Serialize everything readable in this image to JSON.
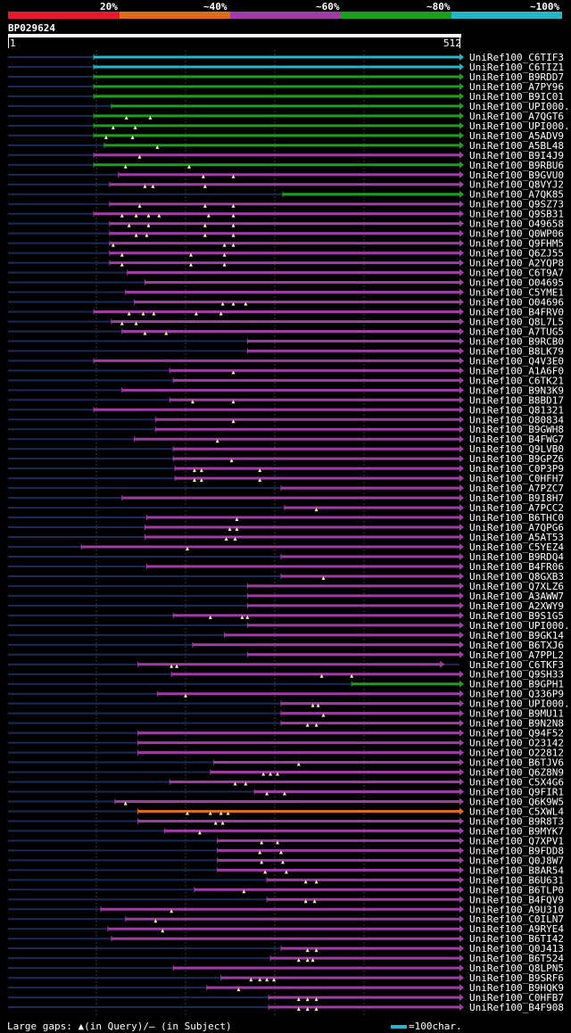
{
  "legend": {
    "labels": [
      "20%",
      "~40%",
      "~60%",
      "~80%",
      "~100%"
    ],
    "colors": [
      "#e8192c",
      "#e06b1a",
      "#a03ca6",
      "#1aa01a",
      "#22b8c8"
    ]
  },
  "query": {
    "id": "BP029624",
    "start": "1",
    "end": "512",
    "length": 512
  },
  "footer": {
    "gaps": "Large gaps: ▲(in Query)/– (in Subject)",
    "scale": "=100char."
  },
  "hits": [
    {
      "name": "UniRef100_C6TIF3",
      "s": 98,
      "e": 512,
      "c": "#22b8c8",
      "g": []
    },
    {
      "name": "UniRef100_C6TIZ1",
      "s": 98,
      "e": 512,
      "c": "#22b8c8",
      "g": []
    },
    {
      "name": "UniRef100_B9RDD7",
      "s": 98,
      "e": 512,
      "c": "#1aa01a",
      "g": []
    },
    {
      "name": "UniRef100_A7PY96",
      "s": 98,
      "e": 512,
      "c": "#1aa01a",
      "g": []
    },
    {
      "name": "UniRef100_B9IC01",
      "s": 98,
      "e": 512,
      "c": "#1aa01a",
      "g": []
    },
    {
      "name": "UniRef100_UPI000..",
      "s": 118,
      "e": 512,
      "c": "#1aa01a",
      "g": []
    },
    {
      "name": "UniRef100_A7QGT6",
      "s": 98,
      "e": 512,
      "c": "#1aa01a",
      "g": [
        135,
        162
      ]
    },
    {
      "name": "UniRef100_UPI000..",
      "s": 98,
      "e": 512,
      "c": "#1aa01a",
      "g": [
        120,
        145
      ]
    },
    {
      "name": "UniRef100_A5ADV9",
      "s": 98,
      "e": 512,
      "c": "#1aa01a",
      "g": [
        112,
        142
      ]
    },
    {
      "name": "UniRef100_A5BL48",
      "s": 110,
      "e": 512,
      "c": "#1aa01a",
      "g": [
        170
      ]
    },
    {
      "name": "UniRef100_B9I4J9",
      "s": 98,
      "e": 512,
      "c": "#a03ca6",
      "g": [
        150
      ]
    },
    {
      "name": "UniRef100_B9RBU6",
      "s": 98,
      "e": 512,
      "c": "#1aa01a",
      "g": [
        134,
        206
      ]
    },
    {
      "name": "UniRef100_B9GVU0",
      "s": 126,
      "e": 512,
      "c": "#a03ca6",
      "g": [
        222,
        256
      ]
    },
    {
      "name": "UniRef100_Q8VYJ2",
      "s": 116,
      "e": 512,
      "c": "#a03ca6",
      "g": [
        156,
        165,
        224
      ]
    },
    {
      "name": "UniRef100_A7QK85",
      "s": 312,
      "e": 512,
      "c": "#1aa01a",
      "g": []
    },
    {
      "name": "UniRef100_Q9SZ73",
      "s": 116,
      "e": 512,
      "c": "#a03ca6",
      "g": [
        150,
        224,
        256
      ]
    },
    {
      "name": "UniRef100_Q9SB31",
      "s": 98,
      "e": 512,
      "c": "#a03ca6",
      "g": [
        130,
        146,
        160,
        172,
        228,
        256
      ]
    },
    {
      "name": "UniRef100_O49658",
      "s": 116,
      "e": 512,
      "c": "#a03ca6",
      "g": [
        138,
        160,
        224,
        256
      ]
    },
    {
      "name": "UniRef100_Q0WP06",
      "s": 116,
      "e": 512,
      "c": "#a03ca6",
      "g": [
        146,
        158,
        224,
        256
      ]
    },
    {
      "name": "UniRef100_Q9FHM5",
      "s": 116,
      "e": 512,
      "c": "#a03ca6",
      "g": [
        120,
        246,
        256
      ]
    },
    {
      "name": "UniRef100_Q6ZJ55",
      "s": 116,
      "e": 512,
      "c": "#a03ca6",
      "g": [
        130,
        208,
        246
      ]
    },
    {
      "name": "UniRef100_A2YQP8",
      "s": 116,
      "e": 512,
      "c": "#a03ca6",
      "g": [
        130,
        208,
        246
      ]
    },
    {
      "name": "UniRef100_C6T9A7",
      "s": 136,
      "e": 512,
      "c": "#a03ca6",
      "g": []
    },
    {
      "name": "UniRef100_O04695",
      "s": 156,
      "e": 512,
      "c": "#a03ca6",
      "g": []
    },
    {
      "name": "UniRef100_C5YME1",
      "s": 134,
      "e": 512,
      "c": "#a03ca6",
      "g": []
    },
    {
      "name": "UniRef100_O04696",
      "s": 144,
      "e": 512,
      "c": "#a03ca6",
      "g": [
        244,
        256,
        270
      ]
    },
    {
      "name": "UniRef100_B4FRV0",
      "s": 98,
      "e": 512,
      "c": "#a03ca6",
      "g": [
        138,
        154,
        166,
        214,
        242
      ]
    },
    {
      "name": "UniRef100_Q8L7L5",
      "s": 118,
      "e": 512,
      "c": "#a03ca6",
      "g": [
        130,
        146
      ]
    },
    {
      "name": "UniRef100_A7TUG5",
      "s": 130,
      "e": 512,
      "c": "#a03ca6",
      "g": [
        156,
        180
      ]
    },
    {
      "name": "UniRef100_B9RCB0",
      "s": 272,
      "e": 512,
      "c": "#a03ca6",
      "g": []
    },
    {
      "name": "UniRef100_B8LK79",
      "s": 272,
      "e": 512,
      "c": "#a03ca6",
      "g": []
    },
    {
      "name": "UniRef100_Q4V3E0",
      "s": 98,
      "e": 512,
      "c": "#a03ca6",
      "g": []
    },
    {
      "name": "UniRef100_A1A6F0",
      "s": 184,
      "e": 512,
      "c": "#a03ca6",
      "g": [
        256
      ]
    },
    {
      "name": "UniRef100_C6TK21",
      "s": 188,
      "e": 512,
      "c": "#a03ca6",
      "g": []
    },
    {
      "name": "UniRef100_B9N3K9",
      "s": 130,
      "e": 512,
      "c": "#a03ca6",
      "g": []
    },
    {
      "name": "UniRef100_B8BD17",
      "s": 184,
      "e": 512,
      "c": "#a03ca6",
      "g": [
        210,
        256
      ]
    },
    {
      "name": "UniRef100_Q81321",
      "s": 98,
      "e": 512,
      "c": "#a03ca6",
      "g": []
    },
    {
      "name": "UniRef100_O80834",
      "s": 168,
      "e": 512,
      "c": "#a03ca6",
      "g": [
        256
      ]
    },
    {
      "name": "UniRef100_B9GWH8",
      "s": 168,
      "e": 512,
      "c": "#a03ca6",
      "g": []
    },
    {
      "name": "UniRef100_B4FWG7",
      "s": 144,
      "e": 512,
      "c": "#a03ca6",
      "g": [
        238
      ]
    },
    {
      "name": "UniRef100_Q9LVB0",
      "s": 188,
      "e": 512,
      "c": "#a03ca6",
      "g": []
    },
    {
      "name": "UniRef100_B9GPZ6",
      "s": 188,
      "e": 512,
      "c": "#a03ca6",
      "g": [
        254
      ]
    },
    {
      "name": "UniRef100_C0P3P9",
      "s": 190,
      "e": 512,
      "c": "#a03ca6",
      "g": [
        212,
        220,
        286
      ]
    },
    {
      "name": "UniRef100_C0HFH7",
      "s": 190,
      "e": 512,
      "c": "#a03ca6",
      "g": [
        212,
        220,
        286
      ]
    },
    {
      "name": "UniRef100_A7PZC7",
      "s": 310,
      "e": 512,
      "c": "#a03ca6",
      "g": []
    },
    {
      "name": "UniRef100_B9I8H7",
      "s": 130,
      "e": 512,
      "c": "#a03ca6",
      "g": []
    },
    {
      "name": "UniRef100_A7PCC2",
      "s": 314,
      "e": 512,
      "c": "#a03ca6",
      "g": [
        350
      ]
    },
    {
      "name": "UniRef100_B6THC0",
      "s": 158,
      "e": 512,
      "c": "#a03ca6",
      "g": [
        260
      ]
    },
    {
      "name": "UniRef100_A7QPG6",
      "s": 156,
      "e": 512,
      "c": "#a03ca6",
      "g": [
        252,
        260
      ]
    },
    {
      "name": "UniRef100_A5AT53",
      "s": 156,
      "e": 512,
      "c": "#a03ca6",
      "g": [
        248,
        258
      ]
    },
    {
      "name": "UniRef100_C5YEZ4",
      "s": 84,
      "e": 512,
      "c": "#a03ca6",
      "g": [
        204
      ]
    },
    {
      "name": "UniRef100_B9RDQ4",
      "s": 310,
      "e": 512,
      "c": "#a03ca6",
      "g": []
    },
    {
      "name": "UniRef100_B4FR06",
      "s": 158,
      "e": 512,
      "c": "#a03ca6",
      "g": []
    },
    {
      "name": "UniRef100_Q8GXB3",
      "s": 310,
      "e": 512,
      "c": "#a03ca6",
      "g": [
        358
      ]
    },
    {
      "name": "UniRef100_Q7XLZ6",
      "s": 272,
      "e": 512,
      "c": "#a03ca6",
      "g": []
    },
    {
      "name": "UniRef100_A3AWW7",
      "s": 272,
      "e": 512,
      "c": "#a03ca6",
      "g": []
    },
    {
      "name": "UniRef100_A2XWY9",
      "s": 272,
      "e": 512,
      "c": "#a03ca6",
      "g": []
    },
    {
      "name": "UniRef100_B9S1G5",
      "s": 188,
      "e": 512,
      "c": "#a03ca6",
      "g": [
        230,
        266,
        272
      ]
    },
    {
      "name": "UniRef100_UPI000..",
      "s": 272,
      "e": 512,
      "c": "#a03ca6",
      "g": []
    },
    {
      "name": "UniRef100_B9GK14",
      "s": 246,
      "e": 512,
      "c": "#a03ca6",
      "g": []
    },
    {
      "name": "UniRef100_B6TXJ6",
      "s": 210,
      "e": 512,
      "c": "#a03ca6",
      "g": []
    },
    {
      "name": "UniRef100_A7PPL2",
      "s": 272,
      "e": 512,
      "c": "#a03ca6",
      "g": []
    },
    {
      "name": "UniRef100_C6TKF3",
      "s": 148,
      "e": 490,
      "c": "#a03ca6",
      "g": [
        186,
        192
      ]
    },
    {
      "name": "UniRef100_Q9SH33",
      "s": 186,
      "e": 512,
      "c": "#a03ca6",
      "g": [
        356,
        390
      ]
    },
    {
      "name": "UniRef100_B9GPH1",
      "s": 390,
      "e": 512,
      "c": "#1aa01a",
      "g": []
    },
    {
      "name": "UniRef100_Q336P9",
      "s": 170,
      "e": 512,
      "c": "#a03ca6",
      "g": [
        202
      ]
    },
    {
      "name": "UniRef100_UPI000..",
      "s": 310,
      "e": 512,
      "c": "#a03ca6",
      "g": [
        346,
        352
      ]
    },
    {
      "name": "UniRef100_B9MU11",
      "s": 310,
      "e": 512,
      "c": "#a03ca6",
      "g": [
        358
      ]
    },
    {
      "name": "UniRef100_B9N2N8",
      "s": 310,
      "e": 512,
      "c": "#a03ca6",
      "g": [
        340,
        350
      ]
    },
    {
      "name": "UniRef100_Q94F52",
      "s": 148,
      "e": 512,
      "c": "#a03ca6",
      "g": []
    },
    {
      "name": "UniRef100_O23142",
      "s": 148,
      "e": 512,
      "c": "#a03ca6",
      "g": []
    },
    {
      "name": "UniRef100_O22812",
      "s": 148,
      "e": 512,
      "c": "#a03ca6",
      "g": []
    },
    {
      "name": "UniRef100_B6TJV6",
      "s": 234,
      "e": 512,
      "c": "#a03ca6",
      "g": [
        330
      ]
    },
    {
      "name": "UniRef100_Q6Z8N9",
      "s": 230,
      "e": 512,
      "c": "#a03ca6",
      "g": [
        290,
        298,
        306
      ]
    },
    {
      "name": "UniRef100_C5X4G6",
      "s": 184,
      "e": 512,
      "c": "#a03ca6",
      "g": [
        258,
        270
      ]
    },
    {
      "name": "UniRef100_Q9FIR1",
      "s": 280,
      "e": 512,
      "c": "#a03ca6",
      "g": [
        294,
        314
      ]
    },
    {
      "name": "UniRef100_Q6K9W5",
      "s": 122,
      "e": 512,
      "c": "#a03ca6",
      "g": [
        134
      ]
    },
    {
      "name": "UniRef100_C5XWL4",
      "s": 148,
      "e": 512,
      "c": "#e06b1a",
      "g": [
        204,
        230,
        242,
        250
      ]
    },
    {
      "name": "UniRef100_B9R8T3",
      "s": 148,
      "e": 512,
      "c": "#a03ca6",
      "g": [
        236,
        244
      ]
    },
    {
      "name": "UniRef100_B9MYK7",
      "s": 178,
      "e": 512,
      "c": "#a03ca6",
      "g": [
        218
      ]
    },
    {
      "name": "UniRef100_Q7XPV1",
      "s": 238,
      "e": 512,
      "c": "#a03ca6",
      "g": [
        288,
        306
      ]
    },
    {
      "name": "UniRef100_B9FDD8",
      "s": 238,
      "e": 512,
      "c": "#a03ca6",
      "g": [
        286,
        310
      ]
    },
    {
      "name": "UniRef100_Q0J8W7",
      "s": 238,
      "e": 512,
      "c": "#a03ca6",
      "g": [
        288,
        312
      ]
    },
    {
      "name": "UniRef100_B8AR54",
      "s": 238,
      "e": 512,
      "c": "#a03ca6",
      "g": [
        292,
        316
      ]
    },
    {
      "name": "UniRef100_B6U631",
      "s": 294,
      "e": 512,
      "c": "#a03ca6",
      "g": [
        338,
        350
      ]
    },
    {
      "name": "UniRef100_B6TLP0",
      "s": 212,
      "e": 512,
      "c": "#a03ca6",
      "g": [
        268
      ]
    },
    {
      "name": "UniRef100_B4FQV9",
      "s": 294,
      "e": 512,
      "c": "#a03ca6",
      "g": [
        338,
        348
      ]
    },
    {
      "name": "UniRef100_A9U310",
      "s": 106,
      "e": 512,
      "c": "#a03ca6",
      "g": [
        186
      ]
    },
    {
      "name": "UniRef100_C0ILN7",
      "s": 134,
      "e": 512,
      "c": "#a03ca6",
      "g": [
        168
      ]
    },
    {
      "name": "UniRef100_A9RYE4",
      "s": 114,
      "e": 512,
      "c": "#a03ca6",
      "g": [
        176
      ]
    },
    {
      "name": "UniRef100_B6TI42",
      "s": 118,
      "e": 512,
      "c": "#a03ca6",
      "g": []
    },
    {
      "name": "UniRef100_Q0J413",
      "s": 310,
      "e": 512,
      "c": "#a03ca6",
      "g": [
        340,
        350
      ]
    },
    {
      "name": "UniRef100_B6T524",
      "s": 298,
      "e": 512,
      "c": "#a03ca6",
      "g": [
        330,
        340,
        346
      ]
    },
    {
      "name": "UniRef100_Q8LPN5",
      "s": 188,
      "e": 512,
      "c": "#a03ca6",
      "g": []
    },
    {
      "name": "UniRef100_B9SRF6",
      "s": 242,
      "e": 512,
      "c": "#a03ca6",
      "g": [
        276,
        286,
        294,
        302
      ]
    },
    {
      "name": "UniRef100_B9HQK9",
      "s": 226,
      "e": 512,
      "c": "#a03ca6",
      "g": [
        262
      ]
    },
    {
      "name": "UniRef100_C0HFB7",
      "s": 296,
      "e": 512,
      "c": "#a03ca6",
      "g": [
        330,
        340,
        350
      ]
    },
    {
      "name": "UniRef100_B4F908",
      "s": 296,
      "e": 512,
      "c": "#a03ca6",
      "g": [
        330,
        340,
        350
      ]
    }
  ]
}
